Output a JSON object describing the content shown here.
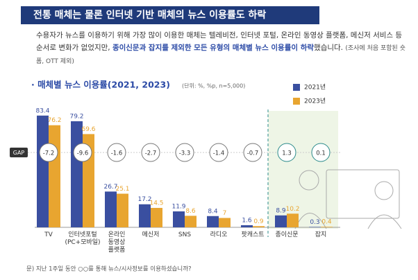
{
  "chart_data": {
    "type": "bar",
    "title": "전통 매체는 물론 인터넷 기반 매체의 뉴스 이용률도 하락",
    "intro": [
      "수용자가 뉴스를 이용하기 위해 가장 많이 이용한 매체는 텔레비전, 인터넷 포털, 온라인 동영상 플랫폼, 메신저 서비스 등 순서로 변화가 없었지만, ",
      "종이신문과 잡지를 제외한 모든 유형의 매체별 뉴스 이용률이 하락",
      "했습니다.",
      "(조사에 처음 포함된 숏폼, OTT 제외)"
    ],
    "subtitle": "· 매체별 뉴스 이용률(2021, 2023)",
    "unit_note": "(단위: %, %p, n=5,000)",
    "categories": [
      "TV",
      "인터넷포털\n(PC+모바일)",
      "온라인\n동영상\n플랫폼",
      "메신저",
      "SNS",
      "라디오",
      "팟캐스트",
      "종이신문",
      "잡지"
    ],
    "series": [
      {
        "name": "2021년",
        "color": "#3a4fa0",
        "values": [
          83.4,
          79.2,
          26.7,
          17.2,
          11.9,
          8.4,
          1.6,
          8.9,
          0.3
        ]
      },
      {
        "name": "2023년",
        "color": "#e8a530",
        "values": [
          76.2,
          69.6,
          25.1,
          14.5,
          8.6,
          7,
          0.9,
          10.2,
          0.4
        ]
      }
    ],
    "gap_label": "GAP",
    "gap_values": [
      -7.2,
      -9.6,
      -1.6,
      -2.7,
      -3.3,
      -1.4,
      -0.7,
      1.3,
      0.1
    ],
    "ylim": [
      0,
      90
    ],
    "footnote": "문) 지난 1주일 동안 ○○를 통해 뉴스/시사정보를 이용하셨습니까?"
  }
}
